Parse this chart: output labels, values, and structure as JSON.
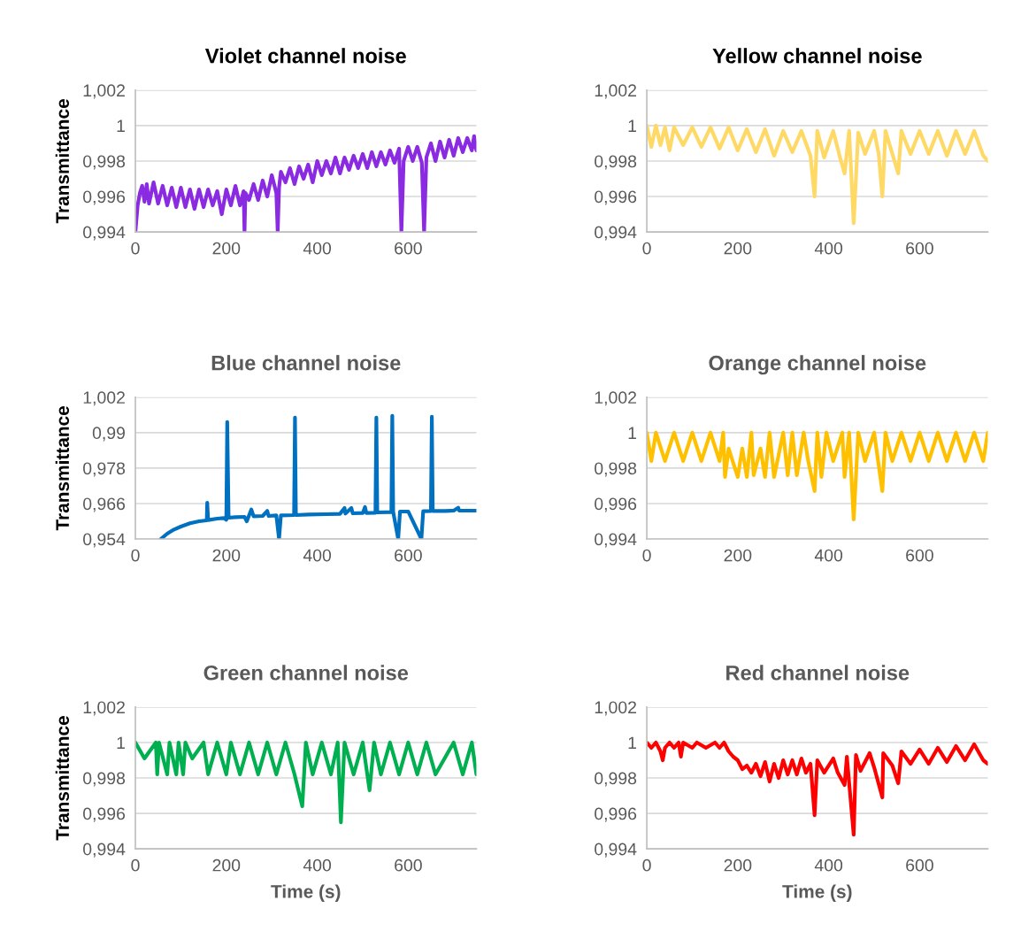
{
  "chart_data": [
    {
      "type": "line",
      "title": "Violet channel noise",
      "ylabel": "Transmittance",
      "xlim": [
        0,
        750
      ],
      "xticks": [
        0,
        200,
        400,
        600
      ],
      "ylim": [
        0.994,
        1.002
      ],
      "yticks": [
        {
          "value": 0.994,
          "label": "0,994"
        },
        {
          "value": 0.996,
          "label": "0,996"
        },
        {
          "value": 0.998,
          "label": "0,998"
        },
        {
          "value": 1,
          "label": "1"
        },
        {
          "value": 1.002,
          "label": "1,002"
        }
      ],
      "grid": "y",
      "x": [
        0,
        5,
        10,
        15,
        20,
        25,
        30,
        40,
        50,
        60,
        70,
        80,
        90,
        100,
        110,
        120,
        130,
        140,
        150,
        160,
        170,
        180,
        190,
        200,
        210,
        220,
        230,
        238,
        240,
        242,
        250,
        260,
        270,
        280,
        290,
        300,
        310,
        313,
        316,
        320,
        330,
        340,
        350,
        360,
        370,
        380,
        390,
        400,
        410,
        420,
        430,
        440,
        450,
        460,
        470,
        480,
        490,
        500,
        510,
        520,
        530,
        540,
        550,
        560,
        570,
        580,
        585,
        590,
        600,
        610,
        620,
        630,
        635,
        640,
        650,
        660,
        670,
        680,
        690,
        700,
        710,
        720,
        730,
        740,
        745,
        750
      ],
      "series": [
        {
          "color": "#8a2be2",
          "values": [
            0.994,
            0.9955,
            0.9962,
            0.9966,
            0.9957,
            0.9967,
            0.9956,
            0.9968,
            0.9956,
            0.9966,
            0.9955,
            0.9965,
            0.9954,
            0.9965,
            0.9954,
            0.9964,
            0.9953,
            0.9964,
            0.9954,
            0.9964,
            0.9955,
            0.9963,
            0.995,
            0.9964,
            0.9955,
            0.9966,
            0.9955,
            0.9963,
            0.994,
            0.9962,
            0.9958,
            0.9967,
            0.9958,
            0.9969,
            0.996,
            0.9972,
            0.9962,
            0.994,
            0.9965,
            0.9974,
            0.9968,
            0.9976,
            0.9967,
            0.9977,
            0.997,
            0.9978,
            0.9968,
            0.998,
            0.9972,
            0.998,
            0.9973,
            0.9982,
            0.9973,
            0.9982,
            0.9975,
            0.9983,
            0.9976,
            0.9984,
            0.9976,
            0.9985,
            0.9977,
            0.9985,
            0.9978,
            0.9986,
            0.9979,
            0.9987,
            0.994,
            0.998,
            0.9988,
            0.998,
            0.9988,
            0.9979,
            0.994,
            0.9982,
            0.999,
            0.998,
            0.9991,
            0.9982,
            0.9992,
            0.9983,
            0.9993,
            0.9985,
            0.9993,
            0.9986,
            0.9994,
            0.9986
          ]
        }
      ]
    },
    {
      "type": "line",
      "title": "Yellow channel noise",
      "xlim": [
        0,
        750
      ],
      "xticks": [
        0,
        200,
        400,
        600
      ],
      "ylim": [
        0.994,
        1.002
      ],
      "yticks": [
        {
          "value": 0.994,
          "label": "0,994"
        },
        {
          "value": 0.996,
          "label": "0,996"
        },
        {
          "value": 0.998,
          "label": "0,998"
        },
        {
          "value": 1,
          "label": "1"
        },
        {
          "value": 1.002,
          "label": "1,002"
        }
      ],
      "grid": "y",
      "x": [
        0,
        10,
        20,
        30,
        40,
        50,
        60,
        80,
        100,
        120,
        140,
        160,
        180,
        200,
        220,
        240,
        260,
        280,
        300,
        320,
        340,
        360,
        369,
        375,
        390,
        410,
        425,
        435,
        445,
        455,
        465,
        480,
        500,
        510,
        518,
        525,
        540,
        553,
        560,
        580,
        600,
        620,
        640,
        660,
        680,
        700,
        720,
        740,
        750
      ],
      "series": [
        {
          "color": "#ffd966",
          "values": [
            1.0,
            0.9988,
            1.0,
            0.9989,
            0.9999,
            0.9986,
            0.9999,
            0.9989,
            0.9999,
            0.9988,
            0.9999,
            0.9987,
            0.9999,
            0.9986,
            0.9998,
            0.9985,
            0.9998,
            0.9983,
            0.9997,
            0.9985,
            0.9997,
            0.9983,
            0.996,
            0.9997,
            0.9982,
            0.9997,
            0.9982,
            0.9973,
            0.9997,
            0.9945,
            0.9996,
            0.9984,
            0.9997,
            0.9984,
            0.996,
            0.9997,
            0.9984,
            0.9973,
            0.9997,
            0.9984,
            0.9997,
            0.9984,
            0.9997,
            0.9983,
            0.9997,
            0.9984,
            0.9997,
            0.9983,
            0.998
          ]
        }
      ]
    },
    {
      "type": "line",
      "title": "Blue channel noise",
      "ylabel": "Transmittance",
      "xlim": [
        0,
        750
      ],
      "xticks": [
        0,
        200,
        400,
        600
      ],
      "ylim": [
        0.954,
        1.002
      ],
      "yticks": [
        {
          "value": 0.954,
          "label": "0,954"
        },
        {
          "value": 0.966,
          "label": "0,966"
        },
        {
          "value": 0.978,
          "label": "0,978"
        },
        {
          "value": 0.99,
          "label": "0,99"
        },
        {
          "value": 1.002,
          "label": "1,002"
        }
      ],
      "grid": "y",
      "x": [
        56,
        70,
        85,
        100,
        120,
        140,
        157,
        158,
        160,
        180,
        195,
        200,
        202,
        205,
        220,
        240,
        245,
        255,
        260,
        280,
        290,
        293,
        310,
        316,
        320,
        349,
        351,
        353,
        380,
        420,
        450,
        460,
        462,
        475,
        478,
        500,
        505,
        508,
        528,
        530,
        532,
        563,
        565,
        567,
        578,
        582,
        600,
        629,
        633,
        650,
        652,
        654,
        680,
        700,
        710,
        712,
        730,
        750
      ],
      "series": [
        {
          "color": "#0070c0",
          "values": [
            0.954,
            0.9558,
            0.9572,
            0.9582,
            0.9593,
            0.96,
            0.9603,
            0.9663,
            0.9604,
            0.9609,
            0.9611,
            0.9605,
            0.9936,
            0.9612,
            0.9614,
            0.9615,
            0.96,
            0.964,
            0.9617,
            0.9618,
            0.9635,
            0.9618,
            0.962,
            0.954,
            0.962,
            0.9621,
            0.9951,
            0.9621,
            0.9623,
            0.9624,
            0.9625,
            0.9645,
            0.9626,
            0.9645,
            0.9627,
            0.9628,
            0.9648,
            0.9628,
            0.9629,
            0.9951,
            0.963,
            0.9631,
            0.9957,
            0.9632,
            0.954,
            0.9633,
            0.9633,
            0.954,
            0.9634,
            0.9635,
            0.9954,
            0.9635,
            0.9635,
            0.9636,
            0.9646,
            0.9636,
            0.9636,
            0.9636
          ]
        }
      ]
    },
    {
      "type": "line",
      "title": "Orange channel noise",
      "xlim": [
        0,
        750
      ],
      "xticks": [
        0,
        200,
        400,
        600
      ],
      "ylim": [
        0.994,
        1.002
      ],
      "yticks": [
        {
          "value": 0.994,
          "label": "0,994"
        },
        {
          "value": 0.996,
          "label": "0,996"
        },
        {
          "value": 0.998,
          "label": "0,998"
        },
        {
          "value": 1,
          "label": "1"
        },
        {
          "value": 1.002,
          "label": "1,002"
        }
      ],
      "grid": "y",
      "x": [
        0,
        10,
        20,
        40,
        60,
        80,
        100,
        120,
        140,
        160,
        168,
        172,
        180,
        200,
        210,
        220,
        230,
        235,
        250,
        260,
        270,
        280,
        300,
        310,
        320,
        330,
        345,
        355,
        369,
        375,
        384,
        395,
        410,
        430,
        435,
        445,
        455,
        465,
        480,
        500,
        518,
        525,
        540,
        560,
        580,
        600,
        620,
        640,
        660,
        680,
        700,
        720,
        740,
        750
      ],
      "series": [
        {
          "color": "#ffc000",
          "values": [
            1.0,
            0.9984,
            1.0,
            0.9984,
            1.0,
            0.9984,
            1.0,
            0.9984,
            1.0,
            0.9984,
            1.0,
            0.9975,
            0.9991,
            0.9975,
            0.9991,
            0.9975,
            1.0,
            0.9976,
            0.9991,
            0.9975,
            1.0,
            0.9975,
            1.0,
            0.9976,
            1.0,
            0.9976,
            1.0,
            0.9984,
            0.9967,
            1.0,
            0.9975,
            1.0,
            0.9984,
            1.0,
            0.9975,
            1.0,
            0.9951,
            1.0,
            0.9984,
            1.0,
            0.9967,
            1.0,
            0.9984,
            1.0,
            0.9984,
            1.0,
            0.9984,
            1.0,
            0.9984,
            1.0,
            0.9984,
            1.0,
            0.9984,
            1.0
          ]
        }
      ]
    },
    {
      "type": "line",
      "title": "Green channel noise",
      "ylabel": "Transmittance",
      "xlabel": "Time (s)",
      "xlim": [
        0,
        750
      ],
      "xticks": [
        0,
        200,
        400,
        600
      ],
      "ylim": [
        0.994,
        1.002
      ],
      "yticks": [
        {
          "value": 0.994,
          "label": "0,994"
        },
        {
          "value": 0.996,
          "label": "0,996"
        },
        {
          "value": 0.998,
          "label": "0,998"
        },
        {
          "value": 1,
          "label": "1"
        },
        {
          "value": 1.002,
          "label": "1,002"
        }
      ],
      "grid": "y",
      "x": [
        0,
        20,
        45,
        48,
        52,
        70,
        75,
        90,
        95,
        105,
        110,
        125,
        150,
        160,
        180,
        200,
        210,
        230,
        250,
        270,
        290,
        310,
        330,
        350,
        367,
        375,
        390,
        410,
        430,
        445,
        452,
        460,
        480,
        500,
        515,
        525,
        540,
        560,
        580,
        600,
        620,
        640,
        660,
        680,
        700,
        720,
        740,
        750
      ],
      "series": [
        {
          "color": "#00b050",
          "values": [
            1.0,
            0.9991,
            1.0,
            0.9982,
            1.0,
            0.9982,
            1.0,
            0.9982,
            1.0,
            0.9982,
            1.0,
            0.9991,
            1.0,
            0.9982,
            1.0,
            0.9982,
            1.0,
            0.9982,
            1.0,
            0.9982,
            1.0,
            0.9982,
            1.0,
            0.9982,
            0.9964,
            1.0,
            0.9982,
            1.0,
            0.9982,
            1.0,
            0.9955,
            1.0,
            0.9982,
            1.0,
            0.9973,
            1.0,
            0.9982,
            1.0,
            0.9982,
            1.0,
            0.9982,
            1.0,
            0.9982,
            0.9991,
            1.0,
            0.9982,
            1.0,
            0.9982
          ]
        }
      ]
    },
    {
      "type": "line",
      "title": "Red channel noise",
      "xlabel": "Time (s)",
      "xlim": [
        0,
        750
      ],
      "xticks": [
        0,
        200,
        400,
        600
      ],
      "ylim": [
        0.994,
        1.002
      ],
      "yticks": [
        {
          "value": 0.994,
          "label": "0,994"
        },
        {
          "value": 0.996,
          "label": "0,996"
        },
        {
          "value": 0.998,
          "label": "0,998"
        },
        {
          "value": 1,
          "label": "1"
        },
        {
          "value": 1.002,
          "label": "1,002"
        }
      ],
      "grid": "y",
      "x": [
        0,
        10,
        20,
        30,
        35,
        40,
        50,
        60,
        70,
        75,
        80,
        100,
        110,
        130,
        150,
        160,
        170,
        180,
        190,
        200,
        210,
        220,
        230,
        240,
        250,
        260,
        270,
        280,
        290,
        300,
        310,
        320,
        330,
        340,
        350,
        360,
        369,
        375,
        390,
        410,
        420,
        435,
        440,
        455,
        460,
        470,
        490,
        500,
        518,
        520,
        540,
        553,
        560,
        580,
        600,
        620,
        640,
        660,
        680,
        700,
        720,
        740,
        750
      ],
      "series": [
        {
          "color": "#ff0000",
          "values": [
            1.0,
            0.9997,
            1.0,
            0.9995,
            0.999,
            0.9997,
            1.0,
            0.9997,
            1.0,
            0.9992,
            1.0,
            0.9997,
            1.0,
            0.9997,
            1.0,
            0.9997,
            1.0,
            0.9995,
            0.9992,
            0.999,
            0.9985,
            0.9987,
            0.9983,
            0.9988,
            0.9981,
            0.9989,
            0.9978,
            0.9988,
            0.998,
            0.999,
            0.9982,
            0.999,
            0.9982,
            0.9991,
            0.9983,
            0.9988,
            0.9959,
            0.999,
            0.9983,
            0.9991,
            0.9983,
            0.9976,
            0.9992,
            0.9948,
            0.9993,
            0.9984,
            0.9994,
            0.9986,
            0.9969,
            0.9994,
            0.9987,
            0.9977,
            0.9995,
            0.9988,
            0.9996,
            0.9988,
            0.9997,
            0.9989,
            0.9998,
            0.999,
            0.9999,
            0.999,
            0.9988
          ]
        }
      ]
    }
  ]
}
